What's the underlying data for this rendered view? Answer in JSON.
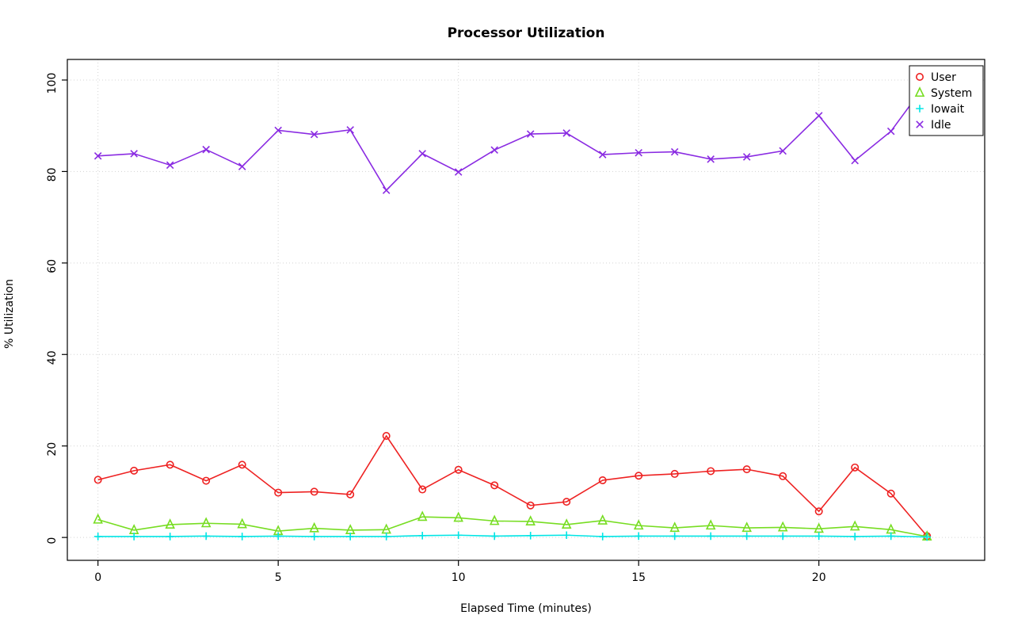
{
  "title": "Processor Utilization",
  "chart_data": {
    "type": "line",
    "title": "Processor Utilization",
    "xlabel": "Elapsed Time (minutes)",
    "ylabel": "% Utilization",
    "x": [
      0,
      1,
      2,
      3,
      4,
      5,
      6,
      7,
      8,
      9,
      10,
      11,
      12,
      13,
      14,
      15,
      16,
      17,
      18,
      19,
      20,
      21,
      22,
      23
    ],
    "series": [
      {
        "name": "User",
        "color": "#ee2222",
        "marker": "circle",
        "values": [
          12.6,
          14.6,
          15.9,
          12.4,
          15.9,
          9.8,
          10.0,
          9.4,
          22.2,
          10.5,
          14.8,
          11.4,
          7.0,
          7.8,
          12.5,
          13.5,
          13.9,
          14.5,
          14.9,
          13.4,
          5.7,
          15.3,
          9.6,
          0.3
        ]
      },
      {
        "name": "System",
        "color": "#77dd22",
        "marker": "triangle",
        "values": [
          3.9,
          1.6,
          2.8,
          3.1,
          2.9,
          1.4,
          2.0,
          1.6,
          1.7,
          4.5,
          4.3,
          3.6,
          3.5,
          2.8,
          3.7,
          2.6,
          2.1,
          2.6,
          2.1,
          2.2,
          1.9,
          2.4,
          1.7,
          0.2
        ]
      },
      {
        "name": "Iowait",
        "color": "#00e5e5",
        "marker": "plus",
        "values": [
          0.2,
          0.2,
          0.2,
          0.3,
          0.2,
          0.3,
          0.2,
          0.2,
          0.2,
          0.4,
          0.5,
          0.3,
          0.4,
          0.5,
          0.2,
          0.3,
          0.3,
          0.3,
          0.3,
          0.3,
          0.3,
          0.2,
          0.3,
          0.1
        ]
      },
      {
        "name": "Idle",
        "color": "#8a2be2",
        "marker": "x",
        "values": [
          83.4,
          83.9,
          81.4,
          84.8,
          81.1,
          89.0,
          88.1,
          89.1,
          75.9,
          83.9,
          79.9,
          84.7,
          88.2,
          88.4,
          83.7,
          84.1,
          84.3,
          82.7,
          83.2,
          84.5,
          92.2,
          82.4,
          88.8,
          99.5
        ]
      }
    ],
    "xticks": [
      0,
      5,
      10,
      15,
      20
    ],
    "yticks": [
      0,
      20,
      40,
      60,
      80,
      100
    ],
    "xlim": [
      0,
      23
    ],
    "ylim": [
      0,
      100
    ],
    "grid": true,
    "legend_position": "top-right",
    "grid_color": "#d3d3d3",
    "frame_color": "#000000"
  }
}
